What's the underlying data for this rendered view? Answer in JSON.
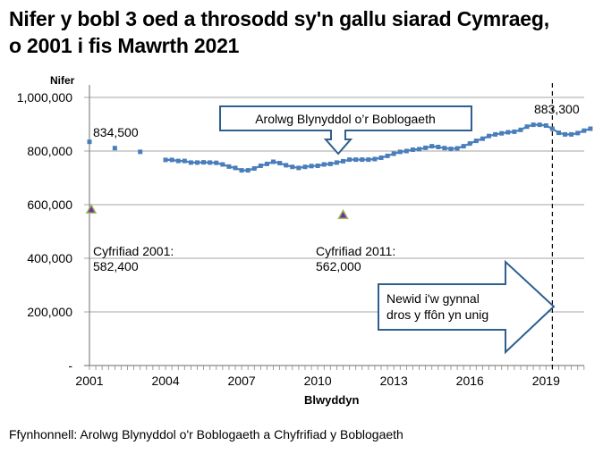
{
  "title": "Nifer y bobl 3 oed a throsodd sy'n gallu siarad Cymraeg, o 2001 i fis Mawrth 2021",
  "title_line1": "Nifer y bobl 3 oed a throsodd sy'n gallu siarad Cymraeg,",
  "title_line2": "o 2001 i fis Mawrth 2021",
  "source": "Ffynhonnell: Arolwg Blynyddol o'r Boblogaeth a Chyfrifiad y Boblogaeth",
  "colors": {
    "series": "#4a7ebb",
    "census_fill": "#7030a0",
    "census_edge": "#9bbb59",
    "callout": "#2e5f8f",
    "grid": "#a6a6a6"
  },
  "annotations": {
    "start_value": "834,500",
    "end_value": "883,300",
    "census_2001_label": "Cyfrifiad 2001:",
    "census_2001_value": "582,400",
    "census_2011_label": "Cyfrifiad 2011:",
    "census_2011_value": "562,000",
    "aps_callout": "Arolwg Blynyddol o’r Boblogaeth",
    "phone_callout_line1": "Newid i'w gynnal",
    "phone_callout_line2": "dros y ffôn yn unig"
  },
  "chart_data": {
    "type": "line",
    "title": "Nifer y bobl 3 oed a throsodd sy'n gallu siarad Cymraeg, o 2001 i fis Mawrth 2021",
    "xlabel": "Blwyddyn",
    "ylabel": "Nifer",
    "ylim": [
      0,
      1000000
    ],
    "yticks": [
      0,
      200000,
      400000,
      600000,
      800000,
      1000000
    ],
    "ytick_labels": [
      "-",
      "200,000",
      "400,000",
      "600,000",
      "800,000",
      "1,000,000"
    ],
    "xticks": [
      2001,
      2004,
      2007,
      2010,
      2013,
      2016,
      2019
    ],
    "xlim": [
      2001,
      2020.9
    ],
    "grid": "horizontal",
    "series": [
      {
        "name": "Arolwg Blynyddol o'r Boblogaeth",
        "marker": "square",
        "x": [
          2001,
          2002,
          2003,
          2004,
          2004.25,
          2004.5,
          2004.75,
          2005,
          2005.25,
          2005.5,
          2005.75,
          2006,
          2006.25,
          2006.5,
          2006.75,
          2007,
          2007.25,
          2007.5,
          2007.75,
          2008,
          2008.25,
          2008.5,
          2008.75,
          2009,
          2009.25,
          2009.5,
          2009.75,
          2010,
          2010.25,
          2010.5,
          2010.75,
          2011,
          2011.25,
          2011.5,
          2011.75,
          2012,
          2012.25,
          2012.5,
          2012.75,
          2013,
          2013.25,
          2013.5,
          2013.75,
          2014,
          2014.25,
          2014.5,
          2014.75,
          2015,
          2015.25,
          2015.5,
          2015.75,
          2016,
          2016.25,
          2016.5,
          2016.75,
          2017,
          2017.25,
          2017.5,
          2017.75,
          2018,
          2018.25,
          2018.5,
          2018.75,
          2019,
          2019.25,
          2019.5,
          2019.75,
          2020,
          2020.25,
          2020.5,
          2020.75
        ],
        "values": [
          834500,
          811000,
          797000,
          767000,
          767000,
          763000,
          763000,
          757000,
          757000,
          758000,
          757000,
          756000,
          750000,
          742000,
          737000,
          728000,
          728000,
          735000,
          745000,
          752000,
          760000,
          755000,
          747000,
          741000,
          737000,
          741000,
          744000,
          745000,
          750000,
          752000,
          757000,
          762000,
          768000,
          768000,
          768000,
          768000,
          770000,
          775000,
          782000,
          790000,
          797000,
          800000,
          805000,
          807000,
          812000,
          818000,
          815000,
          811000,
          808000,
          810000,
          818000,
          828000,
          838000,
          846000,
          856000,
          862000,
          866000,
          870000,
          872000,
          879000,
          891000,
          898000,
          898000,
          895000,
          883000,
          868000,
          862000,
          862000,
          867000,
          876000,
          883300
        ]
      },
      {
        "name": "Cyfrifiad",
        "marker": "triangle",
        "x": [
          2001,
          2011
        ],
        "values": [
          582400,
          562000
        ]
      }
    ],
    "annotations": [
      "834,500",
      "883,300",
      "Cyfrifiad 2001: 582,400",
      "Cyfrifiad 2011: 562,000",
      "Arolwg Blynyddol o’r Boblogaeth",
      "Newid i'w gynnal dros y ffôn yn unig"
    ],
    "vertical_line": {
      "x": 2019.25,
      "style": "dashed"
    }
  }
}
